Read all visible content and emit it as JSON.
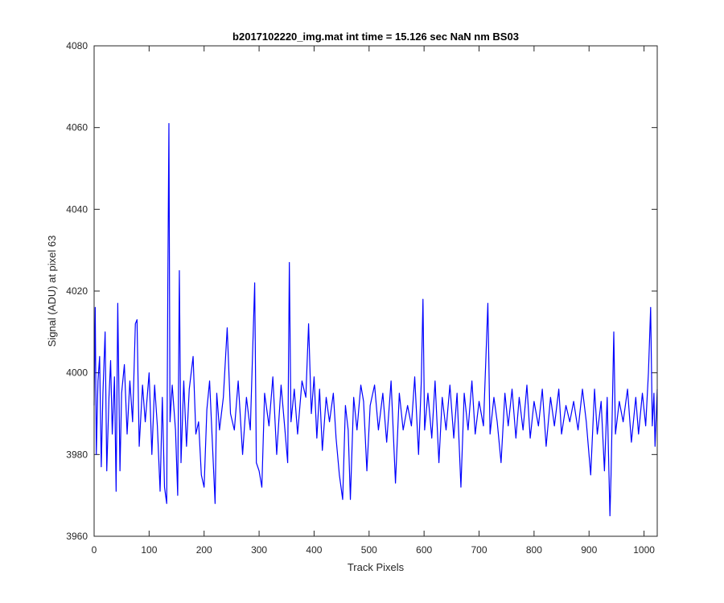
{
  "chart_data": {
    "type": "line",
    "title": "b2017102220_img.mat int time = 15.126 sec  NaN nm BS03",
    "xlabel": "Track Pixels",
    "ylabel": "Signal (ADU) at pixel 63",
    "xlim": [
      0,
      1024
    ],
    "ylim": [
      3960,
      4080
    ],
    "xticks": [
      0,
      100,
      200,
      300,
      400,
      500,
      600,
      700,
      800,
      900,
      1000
    ],
    "yticks": [
      3960,
      3980,
      4000,
      4020,
      4040,
      4060,
      4080
    ],
    "xtick_labels": [
      "0",
      "100",
      "200",
      "300",
      "400",
      "500",
      "600",
      "700",
      "800",
      "900",
      "1000"
    ],
    "ytick_labels": [
      "3960",
      "3980",
      "4000",
      "4020",
      "4040",
      "4060",
      "4080"
    ],
    "grid": false,
    "series_color": "#0000ff",
    "series": [
      {
        "points": [
          [
            0,
            3992
          ],
          [
            2,
            4016
          ],
          [
            4,
            3980
          ],
          [
            7,
            3998
          ],
          [
            10,
            4004
          ],
          [
            13,
            3977
          ],
          [
            16,
            3995
          ],
          [
            20,
            4010
          ],
          [
            23,
            3976
          ],
          [
            27,
            3994
          ],
          [
            30,
            4003
          ],
          [
            33,
            3985
          ],
          [
            37,
            3999
          ],
          [
            40,
            3971
          ],
          [
            43,
            4017
          ],
          [
            47,
            3976
          ],
          [
            50,
            3995
          ],
          [
            55,
            4002
          ],
          [
            60,
            3985
          ],
          [
            65,
            3998
          ],
          [
            70,
            3988
          ],
          [
            75,
            4012
          ],
          [
            78,
            4013
          ],
          [
            82,
            3982
          ],
          [
            88,
            3997
          ],
          [
            93,
            3988
          ],
          [
            100,
            4000
          ],
          [
            105,
            3980
          ],
          [
            110,
            3997
          ],
          [
            115,
            3987
          ],
          [
            120,
            3971
          ],
          [
            124,
            3994
          ],
          [
            128,
            3972
          ],
          [
            132,
            3968
          ],
          [
            134,
            4021
          ],
          [
            136,
            4061
          ],
          [
            138,
            3988
          ],
          [
            142,
            3997
          ],
          [
            148,
            3986
          ],
          [
            152,
            3970
          ],
          [
            155,
            4025
          ],
          [
            158,
            3978
          ],
          [
            163,
            3998
          ],
          [
            168,
            3982
          ],
          [
            173,
            3996
          ],
          [
            180,
            4004
          ],
          [
            185,
            3985
          ],
          [
            190,
            3988
          ],
          [
            195,
            3975
          ],
          [
            200,
            3972
          ],
          [
            205,
            3991
          ],
          [
            210,
            3998
          ],
          [
            215,
            3983
          ],
          [
            220,
            3968
          ],
          [
            223,
            3995
          ],
          [
            228,
            3986
          ],
          [
            235,
            3994
          ],
          [
            242,
            4011
          ],
          [
            248,
            3990
          ],
          [
            255,
            3986
          ],
          [
            262,
            3998
          ],
          [
            270,
            3980
          ],
          [
            277,
            3994
          ],
          [
            284,
            3986
          ],
          [
            292,
            4022
          ],
          [
            295,
            3978
          ],
          [
            300,
            3976
          ],
          [
            305,
            3972
          ],
          [
            310,
            3995
          ],
          [
            318,
            3987
          ],
          [
            325,
            3999
          ],
          [
            332,
            3980
          ],
          [
            340,
            3997
          ],
          [
            347,
            3986
          ],
          [
            352,
            3978
          ],
          [
            355,
            4027
          ],
          [
            358,
            3988
          ],
          [
            364,
            3996
          ],
          [
            370,
            3985
          ],
          [
            378,
            3998
          ],
          [
            385,
            3994
          ],
          [
            390,
            4012
          ],
          [
            395,
            3990
          ],
          [
            400,
            3999
          ],
          [
            405,
            3984
          ],
          [
            410,
            3996
          ],
          [
            415,
            3981
          ],
          [
            422,
            3994
          ],
          [
            428,
            3988
          ],
          [
            435,
            3995
          ],
          [
            440,
            3984
          ],
          [
            446,
            3975
          ],
          [
            452,
            3969
          ],
          [
            457,
            3992
          ],
          [
            462,
            3986
          ],
          [
            466,
            3969
          ],
          [
            472,
            3994
          ],
          [
            478,
            3986
          ],
          [
            485,
            3997
          ],
          [
            490,
            3993
          ],
          [
            496,
            3976
          ],
          [
            502,
            3992
          ],
          [
            510,
            3997
          ],
          [
            517,
            3986
          ],
          [
            525,
            3995
          ],
          [
            532,
            3983
          ],
          [
            540,
            3998
          ],
          [
            548,
            3973
          ],
          [
            555,
            3995
          ],
          [
            562,
            3986
          ],
          [
            570,
            3992
          ],
          [
            577,
            3987
          ],
          [
            583,
            3999
          ],
          [
            590,
            3980
          ],
          [
            595,
            3998
          ],
          [
            598,
            4018
          ],
          [
            601,
            3986
          ],
          [
            607,
            3995
          ],
          [
            614,
            3984
          ],
          [
            620,
            3998
          ],
          [
            627,
            3978
          ],
          [
            633,
            3994
          ],
          [
            640,
            3986
          ],
          [
            647,
            3997
          ],
          [
            654,
            3984
          ],
          [
            660,
            3995
          ],
          [
            667,
            3972
          ],
          [
            673,
            3995
          ],
          [
            680,
            3986
          ],
          [
            687,
            3998
          ],
          [
            693,
            3985
          ],
          [
            700,
            3993
          ],
          [
            708,
            3987
          ],
          [
            716,
            4017
          ],
          [
            720,
            3985
          ],
          [
            727,
            3994
          ],
          [
            733,
            3988
          ],
          [
            740,
            3978
          ],
          [
            747,
            3995
          ],
          [
            753,
            3987
          ],
          [
            760,
            3996
          ],
          [
            767,
            3984
          ],
          [
            773,
            3994
          ],
          [
            780,
            3986
          ],
          [
            787,
            3997
          ],
          [
            793,
            3984
          ],
          [
            800,
            3993
          ],
          [
            808,
            3987
          ],
          [
            815,
            3996
          ],
          [
            822,
            3982
          ],
          [
            830,
            3994
          ],
          [
            837,
            3987
          ],
          [
            845,
            3996
          ],
          [
            850,
            3985
          ],
          [
            858,
            3992
          ],
          [
            865,
            3988
          ],
          [
            872,
            3993
          ],
          [
            880,
            3986
          ],
          [
            888,
            3996
          ],
          [
            895,
            3988
          ],
          [
            903,
            3975
          ],
          [
            910,
            3996
          ],
          [
            915,
            3985
          ],
          [
            922,
            3993
          ],
          [
            928,
            3976
          ],
          [
            933,
            3994
          ],
          [
            938,
            3965
          ],
          [
            940,
            3975
          ],
          [
            945,
            4010
          ],
          [
            948,
            3985
          ],
          [
            955,
            3993
          ],
          [
            962,
            3988
          ],
          [
            970,
            3996
          ],
          [
            977,
            3983
          ],
          [
            985,
            3994
          ],
          [
            990,
            3985
          ],
          [
            997,
            3995
          ],
          [
            1003,
            3987
          ],
          [
            1008,
            4000
          ],
          [
            1012,
            4016
          ],
          [
            1015,
            3987
          ],
          [
            1018,
            3995
          ],
          [
            1020,
            3982
          ],
          [
            1024,
            3996
          ]
        ]
      }
    ]
  }
}
